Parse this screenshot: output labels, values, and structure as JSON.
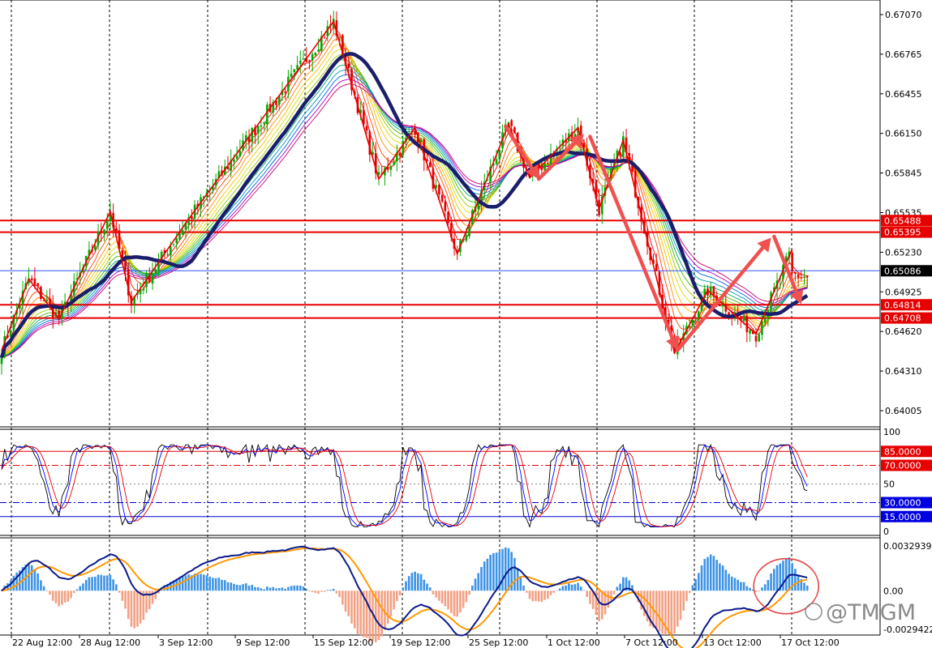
{
  "chart_data": [
    {
      "type": "candlestick",
      "panel": "price",
      "symbol": "",
      "x_ticks": [
        "22 Aug 12:00",
        "28 Aug 12:00",
        "3 Sep 12:00",
        "9 Sep 12:00",
        "15 Sep 12:00",
        "19 Sep 12:00",
        "25 Sep 12:00",
        "1 Oct 12:00",
        "7 Oct 12:00",
        "13 Oct 12:00",
        "17 Oct 12:00"
      ],
      "y_ticks": [
        "0.67070",
        "0.66765",
        "0.66455",
        "0.66150",
        "0.65845",
        "0.65535",
        "0.65230",
        "0.64925",
        "0.64620",
        "0.64310",
        "0.64005"
      ],
      "ylim": [
        0.6385,
        0.6722
      ],
      "grid": true,
      "current_price": {
        "label": "0.65086",
        "value": 0.65086,
        "color": "#000000"
      },
      "support_resistance": [
        {
          "label": "0.65488",
          "value": 0.65488,
          "color": "#e60000"
        },
        {
          "label": "0.65395",
          "value": 0.65395,
          "color": "#e60000"
        },
        {
          "label": "0.64814",
          "value": 0.64814,
          "color": "#e60000"
        },
        {
          "label": "0.64708",
          "value": 0.64708,
          "color": "#e60000"
        }
      ],
      "zigzag": [
        {
          "index": 0,
          "price": 0.6445
        },
        {
          "index": 9,
          "price": 0.6502
        },
        {
          "index": 19,
          "price": 0.647
        },
        {
          "index": 36,
          "price": 0.6556
        },
        {
          "index": 43,
          "price": 0.6484
        },
        {
          "index": 62,
          "price": 0.655
        },
        {
          "index": 110,
          "price": 0.6708
        },
        {
          "index": 125,
          "price": 0.6582
        },
        {
          "index": 137,
          "price": 0.6623
        },
        {
          "index": 151,
          "price": 0.6522
        },
        {
          "index": 168,
          "price": 0.6626
        },
        {
          "index": 175,
          "price": 0.6583
        },
        {
          "index": 191,
          "price": 0.6623
        },
        {
          "index": 198,
          "price": 0.6558
        },
        {
          "index": 206,
          "price": 0.6613
        },
        {
          "index": 223,
          "price": 0.6443
        },
        {
          "index": 234,
          "price": 0.6493
        },
        {
          "index": 250,
          "price": 0.6458
        },
        {
          "index": 262,
          "price": 0.6526
        }
      ],
      "arrows": [
        {
          "from": [
            167,
            0.6624
          ],
          "to": [
            178,
            0.6582
          ]
        },
        {
          "from": [
            178,
            0.6582
          ],
          "to": [
            193,
            0.6618
          ]
        },
        {
          "from": [
            195,
            0.6616
          ],
          "to": [
            224,
            0.6445
          ]
        },
        {
          "from": [
            224,
            0.6445
          ],
          "to": [
            255,
            0.6535
          ]
        },
        {
          "from": [
            256,
            0.6536
          ],
          "to": [
            265,
            0.6482
          ]
        }
      ],
      "colors": {
        "bull_candle": "#00aa00",
        "bear_candle": "#e60000",
        "ma": "#1b1f6b",
        "zigzag": "#e60000",
        "arrow": "#f05050"
      }
    },
    {
      "type": "line",
      "panel": "stochastic",
      "y_ticks": [
        "100",
        "50",
        "0"
      ],
      "levels": [
        {
          "label": "85.0000",
          "value": 85,
          "color": "#e60000",
          "style": "solid"
        },
        {
          "label": "70.0000",
          "value": 70,
          "color": "#e60000",
          "style": "dashdot"
        },
        {
          "label": "30.0000",
          "value": 30,
          "color": "#0000e0",
          "style": "dashdot"
        },
        {
          "label": "15.0000",
          "value": 15,
          "color": "#0000e0",
          "style": "solid"
        }
      ],
      "mid_level": 50,
      "ylim": [
        0,
        100
      ],
      "series_colors": {
        "fast": "#000000",
        "mid": "#0000ff",
        "slow": "#e60000"
      }
    },
    {
      "type": "bar",
      "panel": "macd",
      "y_ticks": [
        "0.0032939",
        "0.00",
        "-0.0029422"
      ],
      "ylim": [
        -0.0029422,
        0.0032939
      ],
      "series_colors": {
        "hist_pos": "#3d93e6",
        "hist_neg": "#f2a184",
        "macd": "#0b1a8a",
        "signal": "#ff9900"
      },
      "annotation": {
        "type": "circle",
        "index": 260,
        "value": 0.0003,
        "color": "#e64444"
      }
    }
  ],
  "watermark": {
    "text": "@TMGM"
  }
}
